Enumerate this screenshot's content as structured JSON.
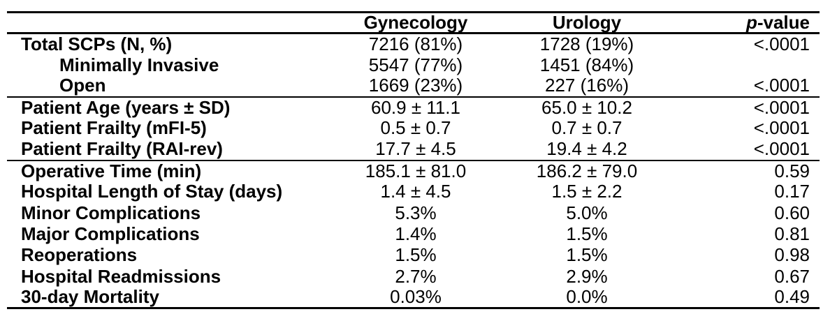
{
  "table": {
    "header": {
      "label": "",
      "gynecology": "Gynecology",
      "urology": "Urology",
      "p_italic": "p",
      "p_suffix": "-value"
    },
    "rows": [
      {
        "label": "Total SCPs (N, %)",
        "indent": false,
        "gynecology": "7216 (81%)",
        "urology": "1728 (19%)",
        "p_value": "<.0001",
        "section_end": false
      },
      {
        "label": "Minimally Invasive",
        "indent": true,
        "gynecology": "5547 (77%)",
        "urology": "1451 (84%)",
        "p_value": "",
        "section_end": false
      },
      {
        "label": "Open",
        "indent": true,
        "gynecology": "1669 (23%)",
        "urology": "227 (16%)",
        "p_value": "<.0001",
        "section_end": true
      },
      {
        "label": "Patient Age (years ± SD)",
        "indent": false,
        "gynecology": "60.9 ± 11.1",
        "urology": "65.0 ± 10.2",
        "p_value": "<.0001",
        "section_end": false
      },
      {
        "label": "Patient Frailty (mFI-5)",
        "indent": false,
        "gynecology": "0.5 ± 0.7",
        "urology": "0.7 ± 0.7",
        "p_value": "<.0001",
        "section_end": false
      },
      {
        "label": "Patient Frailty (RAI-rev)",
        "indent": false,
        "gynecology": "17.7 ± 4.5",
        "urology": "19.4 ± 4.2",
        "p_value": "<.0001",
        "section_end": true
      },
      {
        "label": "Operative Time (min)",
        "indent": false,
        "gynecology": "185.1 ± 81.0",
        "urology": "186.2 ± 79.0",
        "p_value": "0.59",
        "section_end": false
      },
      {
        "label": "Hospital Length of Stay (days)",
        "indent": false,
        "gynecology": "1.4 ± 4.5",
        "urology": "1.5 ± 2.2",
        "p_value": "0.17",
        "section_end": false
      },
      {
        "label": "Minor Complications",
        "indent": false,
        "gynecology": "5.3%",
        "urology": "5.0%",
        "p_value": "0.60",
        "section_end": false
      },
      {
        "label": "Major Complications",
        "indent": false,
        "gynecology": "1.4%",
        "urology": "1.5%",
        "p_value": "0.81",
        "section_end": false
      },
      {
        "label": "Reoperations",
        "indent": false,
        "gynecology": "1.5%",
        "urology": "1.5%",
        "p_value": "0.98",
        "section_end": false
      },
      {
        "label": "Hospital Readmissions",
        "indent": false,
        "gynecology": "2.7%",
        "urology": "2.9%",
        "p_value": "0.67",
        "section_end": false
      },
      {
        "label": "30-day Mortality",
        "indent": false,
        "gynecology": "0.03%",
        "urology": "0.0%",
        "p_value": "0.49",
        "section_end": false
      }
    ],
    "colors": {
      "text": "#000000",
      "background": "#ffffff",
      "rule": "#000000"
    }
  },
  "chart_data": {
    "type": "table",
    "title": "",
    "columns": [
      "",
      "Gynecology",
      "Urology",
      "p-value"
    ],
    "rows": [
      [
        "Total SCPs (N, %)",
        "7216 (81%)",
        "1728 (19%)",
        "<.0001"
      ],
      [
        "Minimally Invasive",
        "5547 (77%)",
        "1451 (84%)",
        ""
      ],
      [
        "Open",
        "1669 (23%)",
        "227 (16%)",
        "<.0001"
      ],
      [
        "Patient Age (years ± SD)",
        "60.9 ± 11.1",
        "65.0 ± 10.2",
        "<.0001"
      ],
      [
        "Patient Frailty (mFI-5)",
        "0.5 ± 0.7",
        "0.7 ± 0.7",
        "<.0001"
      ],
      [
        "Patient Frailty (RAI-rev)",
        "17.7 ± 4.5",
        "19.4 ± 4.2",
        "<.0001"
      ],
      [
        "Operative Time (min)",
        "185.1 ± 81.0",
        "186.2 ± 79.0",
        "0.59"
      ],
      [
        "Hospital Length of Stay (days)",
        "1.4 ± 4.5",
        "1.5 ± 2.2",
        "0.17"
      ],
      [
        "Minor Complications",
        "5.3%",
        "5.0%",
        "0.60"
      ],
      [
        "Major Complications",
        "1.4%",
        "1.5%",
        "0.81"
      ],
      [
        "Reoperations",
        "1.5%",
        "1.5%",
        "0.98"
      ],
      [
        "Hospital Readmissions",
        "2.7%",
        "2.9%",
        "0.67"
      ],
      [
        "30-day Mortality",
        "0.03%",
        "0.0%",
        "0.49"
      ]
    ]
  }
}
